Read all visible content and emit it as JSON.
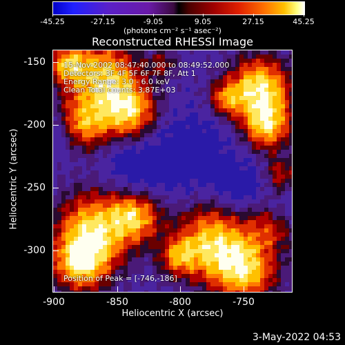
{
  "colorbar": {
    "ticks": [
      "-45.25",
      "-27.15",
      "-9.05",
      "9.05",
      "27.15",
      "45.25"
    ],
    "unit": "(photons cm⁻² s⁻¹ asec⁻²)"
  },
  "title": "Reconstructed RHESSI Image",
  "annotations": {
    "time": "15-Nov-2002 08:47:40.000 to 08:49:52.000",
    "detectors": "Detectors: 3F 4F 5F 6F 7F 8F, Att 1",
    "energy": "Energy Range: 3.0 - 6.0 keV",
    "clean": "Clean    Total counts: 3.87E+03",
    "peak": "Position of Peak = [-746,-186]"
  },
  "axes": {
    "xlabel": "Heliocentric X (arcsec)",
    "ylabel": "Heliocentric Y (arcsec)",
    "xticks": [
      "-900",
      "-850",
      "-800",
      "-750"
    ],
    "yticks": [
      "-150",
      "-200",
      "-250",
      "-300"
    ]
  },
  "timestamp": "3-May-2022 04:53"
}
